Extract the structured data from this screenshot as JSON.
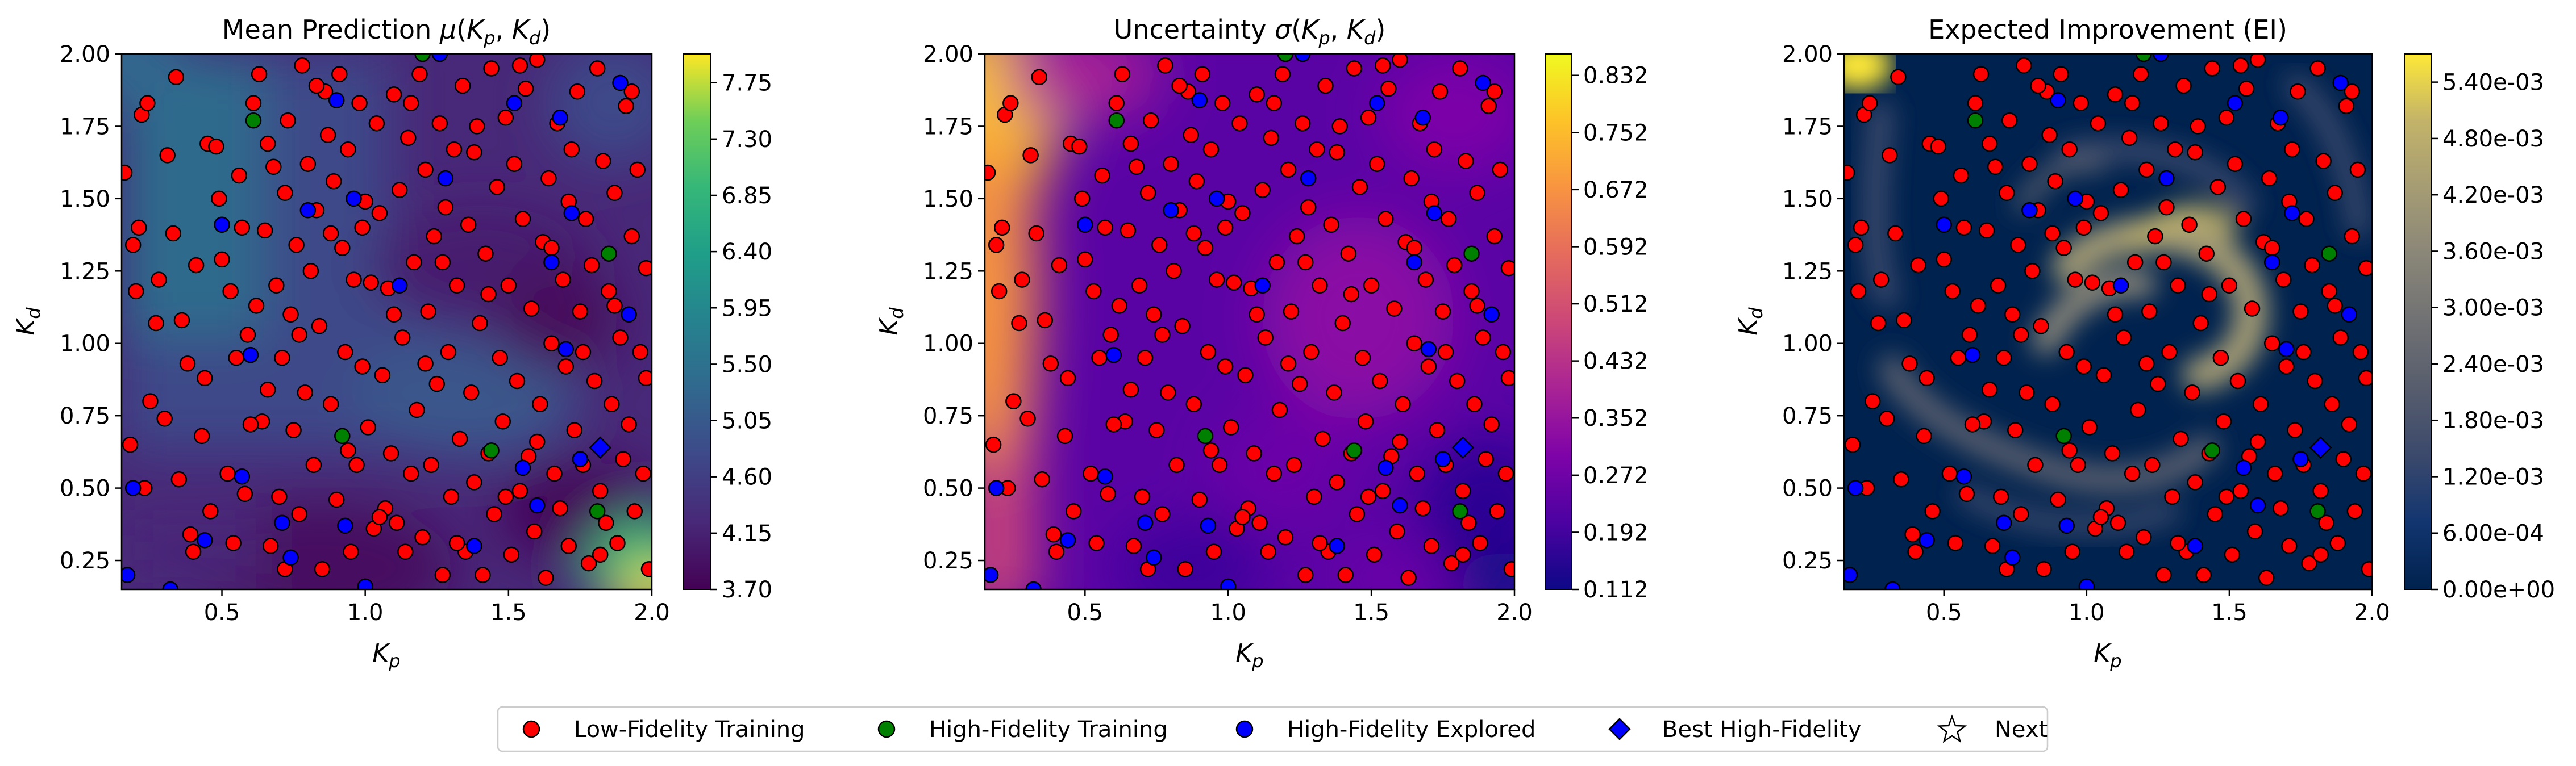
{
  "chart_data": [
    {
      "type": "heatmap",
      "title": "Mean Prediction μ(Kp,Kd)",
      "title_parts": {
        "main": "Mean Prediction ",
        "sym": "μ",
        "open": "(",
        "var1": "K",
        "sub1": "p",
        "comma": ", ",
        "var2": "K",
        "sub2": "d",
        "close": ")"
      },
      "colormap": "viridis",
      "xlim": [
        0.15,
        2.0
      ],
      "ylim": [
        0.15,
        2.0
      ],
      "x_ticks": [
        0.5,
        1.0,
        1.5,
        2.0
      ],
      "x_tick_labels": [
        "0.5",
        "1.0",
        "1.5",
        "2.0"
      ],
      "y_ticks": [
        0.25,
        0.5,
        0.75,
        1.0,
        1.25,
        1.5,
        1.75,
        2.0
      ],
      "y_tick_labels": [
        "0.25",
        "0.50",
        "0.75",
        "1.00",
        "1.25",
        "1.50",
        "1.75",
        "2.00"
      ],
      "colorbar_range": [
        3.7,
        7.98
      ],
      "colorbar_ticks": [
        3.7,
        4.15,
        4.6,
        5.05,
        5.5,
        5.95,
        6.4,
        6.85,
        7.3,
        7.75
      ],
      "colorbar_tick_labels": [
        "3.70",
        "4.15",
        "4.60",
        "5.05",
        "5.50",
        "5.95",
        "6.40",
        "6.85",
        "7.30",
        "7.75"
      ]
    },
    {
      "type": "heatmap",
      "title": "Uncertainty σ(Kp,Kd)",
      "title_parts": {
        "main": "Uncertainty ",
        "sym": "σ",
        "open": "(",
        "var1": "K",
        "sub1": "p",
        "comma": ", ",
        "var2": "K",
        "sub2": "d",
        "close": ")"
      },
      "colormap": "plasma",
      "xlim": [
        0.15,
        2.0
      ],
      "ylim": [
        0.15,
        2.0
      ],
      "x_ticks": [
        0.5,
        1.0,
        1.5,
        2.0
      ],
      "x_tick_labels": [
        "0.5",
        "1.0",
        "1.5",
        "2.0"
      ],
      "y_ticks": [
        0.25,
        0.5,
        0.75,
        1.0,
        1.25,
        1.5,
        1.75,
        2.0
      ],
      "y_tick_labels": [
        "0.25",
        "0.50",
        "0.75",
        "1.00",
        "1.25",
        "1.50",
        "1.75",
        "2.00"
      ],
      "colorbar_range": [
        0.112,
        0.862
      ],
      "colorbar_ticks": [
        0.112,
        0.192,
        0.272,
        0.352,
        0.432,
        0.512,
        0.592,
        0.672,
        0.752,
        0.832
      ],
      "colorbar_tick_labels": [
        "0.112",
        "0.192",
        "0.272",
        "0.352",
        "0.432",
        "0.512",
        "0.592",
        "0.672",
        "0.752",
        "0.832"
      ]
    },
    {
      "type": "heatmap",
      "title": "Expected Improvement (EI)",
      "title_parts": {
        "main": "Expected Improvement (EI)",
        "sym": "",
        "open": "",
        "var1": "",
        "sub1": "",
        "comma": "",
        "var2": "",
        "sub2": "",
        "close": ""
      },
      "colormap": "cividis",
      "xlim": [
        0.15,
        2.0
      ],
      "ylim": [
        0.15,
        2.0
      ],
      "x_ticks": [
        0.5,
        1.0,
        1.5,
        2.0
      ],
      "x_tick_labels": [
        "0.5",
        "1.0",
        "1.5",
        "2.0"
      ],
      "y_ticks": [
        0.25,
        0.5,
        0.75,
        1.0,
        1.25,
        1.5,
        1.75,
        2.0
      ],
      "y_tick_labels": [
        "0.25",
        "0.50",
        "0.75",
        "1.00",
        "1.25",
        "1.50",
        "1.75",
        "2.00"
      ],
      "colorbar_range": [
        0.0,
        0.0057
      ],
      "colorbar_ticks": [
        0.0,
        0.0006,
        0.0012,
        0.0018,
        0.0024,
        0.003,
        0.0036,
        0.0042,
        0.0048,
        0.0054
      ],
      "colorbar_tick_labels": [
        "0.00e+00",
        "6.00e-04",
        "1.20e-03",
        "1.80e-03",
        "2.40e-03",
        "3.00e-03",
        "3.60e-03",
        "4.20e-03",
        "4.80e-03",
        "5.40e-03"
      ]
    }
  ],
  "axis_labels": {
    "x": {
      "var": "K",
      "sub": "p"
    },
    "y": {
      "var": "K",
      "sub": "d"
    }
  },
  "legend": {
    "location": "bottom-center",
    "entries": [
      {
        "label": "Low-Fidelity Training",
        "marker": "circle",
        "color": "#ff0000"
      },
      {
        "label": "High-Fidelity Training",
        "marker": "circle",
        "color": "#008000"
      },
      {
        "label": "High-Fidelity Explored",
        "marker": "circle",
        "color": "#0000ff"
      },
      {
        "label": "Best High-Fidelity",
        "marker": "diamond",
        "color": "#0000ff"
      },
      {
        "label": "Next",
        "marker": "star",
        "color": "#ffffff"
      }
    ]
  },
  "scatter_series": {
    "low_fidelity_training": [
      [
        0.16,
        1.59
      ],
      [
        0.19,
        1.34
      ],
      [
        0.2,
        1.18
      ],
      [
        0.21,
        1.4
      ],
      [
        0.22,
        1.79
      ],
      [
        0.24,
        1.83
      ],
      [
        0.25,
        0.8
      ],
      [
        0.27,
        1.07
      ],
      [
        0.3,
        0.74
      ],
      [
        0.31,
        1.65
      ],
      [
        0.33,
        1.38
      ],
      [
        0.35,
        0.53
      ],
      [
        0.36,
        1.08
      ],
      [
        0.38,
        0.93
      ],
      [
        0.4,
        0.28
      ],
      [
        0.41,
        1.27
      ],
      [
        0.43,
        0.68
      ],
      [
        0.45,
        1.69
      ],
      [
        0.46,
        0.42
      ],
      [
        0.48,
        1.68
      ],
      [
        0.5,
        1.29
      ],
      [
        0.52,
        0.55
      ],
      [
        0.53,
        1.18
      ],
      [
        0.55,
        0.95
      ],
      [
        0.56,
        1.58
      ],
      [
        0.57,
        1.4
      ],
      [
        0.58,
        0.48
      ],
      [
        0.59,
        1.03
      ],
      [
        0.61,
        1.83
      ],
      [
        0.62,
        1.13
      ],
      [
        0.63,
        1.93
      ],
      [
        0.64,
        0.73
      ],
      [
        0.65,
        1.39
      ],
      [
        0.66,
        0.84
      ],
      [
        0.67,
        0.3
      ],
      [
        0.68,
        1.61
      ],
      [
        0.69,
        1.2
      ],
      [
        0.7,
        0.47
      ],
      [
        0.71,
        0.95
      ],
      [
        0.72,
        1.52
      ],
      [
        0.73,
        1.77
      ],
      [
        0.74,
        1.1
      ],
      [
        0.75,
        0.7
      ],
      [
        0.76,
        1.34
      ],
      [
        0.77,
        0.41
      ],
      [
        0.78,
        1.96
      ],
      [
        0.79,
        0.83
      ],
      [
        0.8,
        1.62
      ],
      [
        0.81,
        1.25
      ],
      [
        0.82,
        0.58
      ],
      [
        0.83,
        1.46
      ],
      [
        0.84,
        1.06
      ],
      [
        0.85,
        0.22
      ],
      [
        0.86,
        1.87
      ],
      [
        0.87,
        1.72
      ],
      [
        0.88,
        0.79
      ],
      [
        0.89,
        1.56
      ],
      [
        0.9,
        0.46
      ],
      [
        0.91,
        1.93
      ],
      [
        0.92,
        1.33
      ],
      [
        0.93,
        0.97
      ],
      [
        0.94,
        1.67
      ],
      [
        0.95,
        0.28
      ],
      [
        0.96,
        1.22
      ],
      [
        0.97,
        0.58
      ],
      [
        0.98,
        1.83
      ],
      [
        0.99,
        0.92
      ],
      [
        1.0,
        1.49
      ],
      [
        1.01,
        0.71
      ],
      [
        1.02,
        1.21
      ],
      [
        1.03,
        0.36
      ],
      [
        1.04,
        1.76
      ],
      [
        1.05,
        1.45
      ],
      [
        1.06,
        0.89
      ],
      [
        1.07,
        0.43
      ],
      [
        1.08,
        1.19
      ],
      [
        1.09,
        0.62
      ],
      [
        1.1,
        1.86
      ],
      [
        1.11,
        0.38
      ],
      [
        1.12,
        1.53
      ],
      [
        1.13,
        1.02
      ],
      [
        1.14,
        0.28
      ],
      [
        1.15,
        1.71
      ],
      [
        1.16,
        0.55
      ],
      [
        1.17,
        1.28
      ],
      [
        1.18,
        0.77
      ],
      [
        1.19,
        1.93
      ],
      [
        1.2,
        0.33
      ],
      [
        1.21,
        1.6
      ],
      [
        1.22,
        1.11
      ],
      [
        1.23,
        0.58
      ],
      [
        1.24,
        1.37
      ],
      [
        1.25,
        0.86
      ],
      [
        1.26,
        1.76
      ],
      [
        1.27,
        0.2
      ],
      [
        1.28,
        1.47
      ],
      [
        1.29,
        0.97
      ],
      [
        1.3,
        0.47
      ],
      [
        1.31,
        1.67
      ],
      [
        1.32,
        1.2
      ],
      [
        1.33,
        0.67
      ],
      [
        1.34,
        1.89
      ],
      [
        1.35,
        0.28
      ],
      [
        1.36,
        1.41
      ],
      [
        1.37,
        0.83
      ],
      [
        1.38,
        0.52
      ],
      [
        1.39,
        1.75
      ],
      [
        1.4,
        1.07
      ],
      [
        1.41,
        0.2
      ],
      [
        1.42,
        1.31
      ],
      [
        1.43,
        0.62
      ],
      [
        1.44,
        1.95
      ],
      [
        1.45,
        0.41
      ],
      [
        1.46,
        1.54
      ],
      [
        1.47,
        0.95
      ],
      [
        1.48,
        0.73
      ],
      [
        1.49,
        1.78
      ],
      [
        1.5,
        1.2
      ],
      [
        1.51,
        0.27
      ],
      [
        1.52,
        1.62
      ],
      [
        1.53,
        0.87
      ],
      [
        1.54,
        0.49
      ],
      [
        1.55,
        1.43
      ],
      [
        1.56,
        1.88
      ],
      [
        1.57,
        0.61
      ],
      [
        1.58,
        1.12
      ],
      [
        1.59,
        0.35
      ],
      [
        1.6,
        1.98
      ],
      [
        1.61,
        0.79
      ],
      [
        1.62,
        1.35
      ],
      [
        1.63,
        0.19
      ],
      [
        1.64,
        1.57
      ],
      [
        1.65,
        1.0
      ],
      [
        1.66,
        0.55
      ],
      [
        1.67,
        1.76
      ],
      [
        1.68,
        0.43
      ],
      [
        1.69,
        1.22
      ],
      [
        1.7,
        0.92
      ],
      [
        1.71,
        0.3
      ],
      [
        1.72,
        1.67
      ],
      [
        1.73,
        0.7
      ],
      [
        1.74,
        1.87
      ],
      [
        1.75,
        1.11
      ],
      [
        1.76,
        0.58
      ],
      [
        1.77,
        1.43
      ],
      [
        1.78,
        0.24
      ],
      [
        1.79,
        1.27
      ],
      [
        1.8,
        0.87
      ],
      [
        1.81,
        1.95
      ],
      [
        1.82,
        0.49
      ],
      [
        1.83,
        1.63
      ],
      [
        1.84,
        0.38
      ],
      [
        1.85,
        1.18
      ],
      [
        1.86,
        0.79
      ],
      [
        1.87,
        1.52
      ],
      [
        1.88,
        0.31
      ],
      [
        1.89,
        1.02
      ],
      [
        1.9,
        0.6
      ],
      [
        1.91,
        1.82
      ],
      [
        1.92,
        0.72
      ],
      [
        1.93,
        1.37
      ],
      [
        1.94,
        0.42
      ],
      [
        1.95,
        1.6
      ],
      [
        1.96,
        0.97
      ],
      [
        1.97,
        0.55
      ],
      [
        1.98,
        1.26
      ],
      [
        1.99,
        0.22
      ],
      [
        0.18,
        0.65
      ],
      [
        0.23,
        0.5
      ],
      [
        0.28,
        1.22
      ],
      [
        0.34,
        1.92
      ],
      [
        0.39,
        0.34
      ],
      [
        0.44,
        0.88
      ],
      [
        0.49,
        1.5
      ],
      [
        0.54,
        0.31
      ],
      [
        0.6,
        0.72
      ],
      [
        0.66,
        1.69
      ],
      [
        0.72,
        0.22
      ],
      [
        0.77,
        1.03
      ],
      [
        0.83,
        1.89
      ],
      [
        0.88,
        1.38
      ],
      [
        0.94,
        0.63
      ],
      [
        0.99,
        1.4
      ],
      [
        1.05,
        0.4
      ],
      [
        1.1,
        1.1
      ],
      [
        1.16,
        1.83
      ],
      [
        1.21,
        0.93
      ],
      [
        1.27,
        1.28
      ],
      [
        1.32,
        0.31
      ],
      [
        1.38,
        1.66
      ],
      [
        1.43,
        1.17
      ],
      [
        1.49,
        0.47
      ],
      [
        1.54,
        1.96
      ],
      [
        1.6,
        0.66
      ],
      [
        1.65,
        1.33
      ],
      [
        1.71,
        1.49
      ],
      [
        1.76,
        0.97
      ],
      [
        1.82,
        0.27
      ],
      [
        1.87,
        1.13
      ],
      [
        1.93,
        1.87
      ],
      [
        1.98,
        0.88
      ]
    ],
    "high_fidelity_training": [
      [
        0.61,
        1.77
      ],
      [
        1.2,
        2.0
      ],
      [
        0.92,
        0.68
      ],
      [
        1.44,
        0.63
      ],
      [
        1.81,
        0.42
      ],
      [
        1.85,
        1.31
      ]
    ],
    "high_fidelity_explored": [
      [
        0.5,
        1.41
      ],
      [
        0.44,
        0.32
      ],
      [
        0.57,
        0.54
      ],
      [
        0.6,
        0.96
      ],
      [
        0.71,
        0.38
      ],
      [
        0.8,
        1.46
      ],
      [
        0.9,
        1.84
      ],
      [
        0.96,
        1.5
      ],
      [
        0.93,
        0.37
      ],
      [
        1.12,
        1.2
      ],
      [
        1.28,
        1.57
      ],
      [
        1.38,
        0.3
      ],
      [
        1.55,
        0.57
      ],
      [
        1.6,
        0.44
      ],
      [
        1.65,
        1.28
      ],
      [
        1.7,
        0.98
      ],
      [
        1.68,
        1.78
      ],
      [
        1.75,
        0.6
      ],
      [
        1.52,
        1.83
      ],
      [
        1.0,
        0.16
      ],
      [
        0.32,
        0.15
      ],
      [
        0.17,
        0.2
      ],
      [
        1.26,
        2.0
      ],
      [
        0.74,
        0.26
      ],
      [
        0.19,
        0.5
      ],
      [
        1.89,
        1.9
      ],
      [
        1.92,
        1.1
      ],
      [
        1.72,
        1.45
      ]
    ],
    "best_high_fidelity": [
      [
        1.82,
        0.64
      ]
    ],
    "next": []
  }
}
